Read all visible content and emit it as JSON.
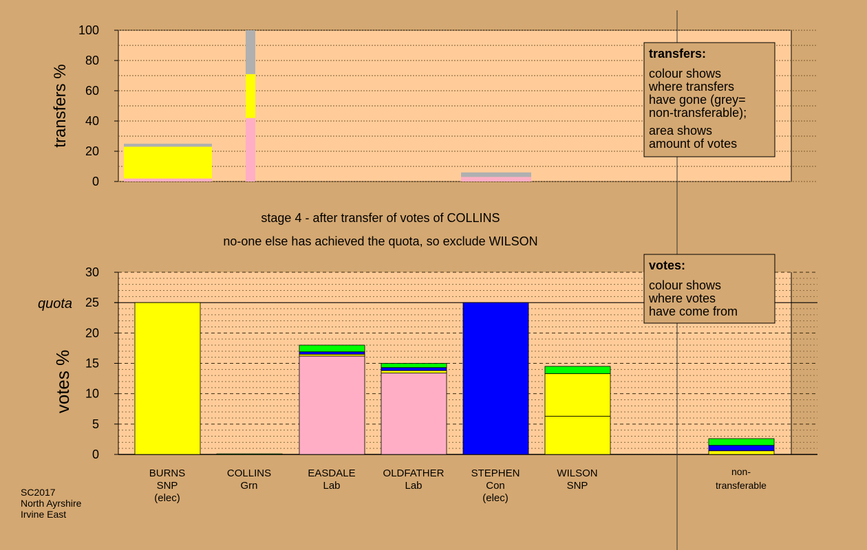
{
  "colors": {
    "background": "#d4a872",
    "plot_area": "#ffcc99",
    "yellow": "#ffff00",
    "pink": "#ffaec6",
    "grey": "#b0b0b0",
    "blue": "#0000ff",
    "green": "#00ff00"
  },
  "stage_line1": "stage 4 - after transfer of votes of COLLINS",
  "stage_line2": "no-one else has achieved the quota, so exclude WILSON",
  "footer": [
    "SC2017",
    "North Ayrshire",
    "Irvine East"
  ],
  "transfers_legend": {
    "title": "transfers:",
    "lines1": [
      "colour shows",
      "where transfers",
      "have gone (grey=",
      "non-transferable);"
    ],
    "lines2": [
      "area shows",
      "amount of votes"
    ]
  },
  "votes_legend": {
    "title": "votes:",
    "lines": [
      "colour shows",
      "where votes",
      "have come from"
    ]
  },
  "candidates": [
    {
      "name": "BURNS",
      "party": "SNP",
      "note": "(elec)"
    },
    {
      "name": "COLLINS",
      "party": "Grn",
      "note": ""
    },
    {
      "name": "EASDALE",
      "party": "Lab",
      "note": ""
    },
    {
      "name": "OLDFATHER",
      "party": "Lab",
      "note": ""
    },
    {
      "name": "STEPHEN",
      "party": "Con",
      "note": "(elec)"
    },
    {
      "name": "WILSON",
      "party": "SNP",
      "note": ""
    }
  ],
  "nontransferable_label": [
    "non-",
    "transferable"
  ],
  "chart_data": [
    {
      "type": "bar",
      "ylabel": "transfers %",
      "ylim": [
        0,
        100
      ],
      "yticks": [
        0,
        20,
        40,
        60,
        80,
        100
      ],
      "grid": true,
      "bars": [
        {
          "candidate": "BURNS",
          "segments": [
            {
              "color": "pink",
              "from": 0,
              "to": 2
            },
            {
              "color": "yellow",
              "from": 2,
              "to": 23
            },
            {
              "color": "grey",
              "from": 23,
              "to": 25
            }
          ]
        },
        {
          "candidate": "COLLINS",
          "segments": [
            {
              "color": "pink",
              "from": 0,
              "to": 42
            },
            {
              "color": "yellow",
              "from": 42,
              "to": 71
            },
            {
              "color": "grey",
              "from": 71,
              "to": 100
            }
          ]
        },
        {
          "candidate": "STEPHEN",
          "segments": [
            {
              "color": "pink",
              "from": 0,
              "to": 3
            },
            {
              "color": "grey",
              "from": 3,
              "to": 6
            }
          ]
        }
      ]
    },
    {
      "type": "bar",
      "ylabel": "votes %",
      "ylim": [
        0,
        30
      ],
      "yticks": [
        0,
        5,
        10,
        15,
        20,
        25,
        30
      ],
      "quota_label": "quota",
      "quota": 25,
      "grid": true,
      "categories": [
        "BURNS",
        "COLLINS",
        "EASDALE",
        "OLDFATHER",
        "STEPHEN",
        "WILSON",
        "non-transferable"
      ],
      "bars": [
        {
          "candidate": "BURNS",
          "segments": [
            {
              "color": "yellow",
              "from": 0,
              "to": 25
            }
          ]
        },
        {
          "candidate": "COLLINS",
          "segments": [
            {
              "color": "green",
              "from": 0,
              "to": 0.1
            }
          ]
        },
        {
          "candidate": "EASDALE",
          "segments": [
            {
              "color": "pink",
              "from": 0,
              "to": 16.2
            },
            {
              "color": "yellow",
              "from": 16.2,
              "to": 16.5
            },
            {
              "color": "blue",
              "from": 16.5,
              "to": 16.9
            },
            {
              "color": "green",
              "from": 16.9,
              "to": 18
            }
          ]
        },
        {
          "candidate": "OLDFATHER",
          "segments": [
            {
              "color": "pink",
              "from": 0,
              "to": 13.4
            },
            {
              "color": "yellow",
              "from": 13.4,
              "to": 13.8
            },
            {
              "color": "blue",
              "from": 13.8,
              "to": 14.3
            },
            {
              "color": "green",
              "from": 14.3,
              "to": 15
            }
          ]
        },
        {
          "candidate": "STEPHEN",
          "segments": [
            {
              "color": "blue",
              "from": 0,
              "to": 25
            }
          ]
        },
        {
          "candidate": "WILSON",
          "segments": [
            {
              "color": "yellow",
              "from": 0,
              "to": 6.3
            },
            {
              "color": "yellow",
              "from": 6.3,
              "to": 13.3
            },
            {
              "color": "green",
              "from": 13.3,
              "to": 14.5
            }
          ]
        },
        {
          "candidate": "non-transferable",
          "segments": [
            {
              "color": "yellow",
              "from": 0,
              "to": 0.6
            },
            {
              "color": "blue",
              "from": 0.6,
              "to": 1.5
            },
            {
              "color": "green",
              "from": 1.5,
              "to": 2.6
            }
          ]
        }
      ]
    }
  ]
}
